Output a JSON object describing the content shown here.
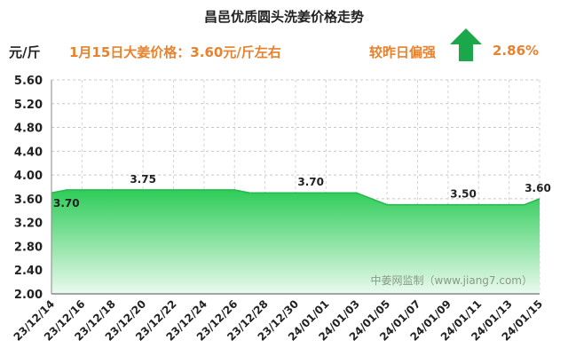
{
  "header": {
    "title": "昌邑优质圆头洗姜价格走势",
    "unit": "元/斤",
    "price_note": "1月15日大姜价格：3.60元/斤左右",
    "change_label": "较昨日偏强",
    "change_value": "2.86%",
    "change_direction": "up"
  },
  "chart_data": {
    "type": "area",
    "x": [
      "23/12/14",
      "23/12/15",
      "23/12/16",
      "23/12/17",
      "23/12/18",
      "23/12/19",
      "23/12/20",
      "23/12/21",
      "23/12/22",
      "23/12/23",
      "23/12/24",
      "23/12/25",
      "23/12/26",
      "23/12/27",
      "23/12/28",
      "23/12/29",
      "23/12/30",
      "23/12/31",
      "24/01/01",
      "24/01/02",
      "24/01/03",
      "24/01/04",
      "24/01/05",
      "24/01/06",
      "24/01/07",
      "24/01/08",
      "24/01/09",
      "24/01/10",
      "24/01/11",
      "24/01/12",
      "24/01/13",
      "24/01/14",
      "24/01/15"
    ],
    "values": [
      3.7,
      3.75,
      3.75,
      3.75,
      3.75,
      3.75,
      3.75,
      3.75,
      3.75,
      3.75,
      3.75,
      3.75,
      3.75,
      3.7,
      3.7,
      3.7,
      3.7,
      3.7,
      3.7,
      3.7,
      3.7,
      3.6,
      3.5,
      3.5,
      3.5,
      3.5,
      3.5,
      3.5,
      3.5,
      3.5,
      3.5,
      3.5,
      3.6
    ],
    "xtick_labels": [
      "23/12/14",
      "23/12/16",
      "23/12/18",
      "23/12/20",
      "23/12/22",
      "23/12/24",
      "23/12/26",
      "23/12/28",
      "23/12/30",
      "24/01/01",
      "24/01/03",
      "24/01/05",
      "24/01/07",
      "24/01/09",
      "24/01/11",
      "24/01/13",
      "24/01/15"
    ],
    "ylim": [
      2.0,
      5.6
    ],
    "yticks": [
      "5.60",
      "5.20",
      "4.80",
      "4.40",
      "4.00",
      "3.60",
      "3.20",
      "2.80",
      "2.40",
      "2.00"
    ],
    "data_labels": [
      {
        "index": 0,
        "text": "3.70"
      },
      {
        "index": 6,
        "text": "3.75"
      },
      {
        "index": 17,
        "text": "3.70"
      },
      {
        "index": 27,
        "text": "3.50"
      },
      {
        "index": 32,
        "text": "3.60"
      }
    ],
    "watermark": "中姜网监制（www.jiang7.com）",
    "grid": true,
    "colors": {
      "fill_top": "#2ecc58",
      "fill_bottom": "#e9f9ec",
      "line": "#25b84c",
      "arrow": "#1aa84a"
    }
  }
}
